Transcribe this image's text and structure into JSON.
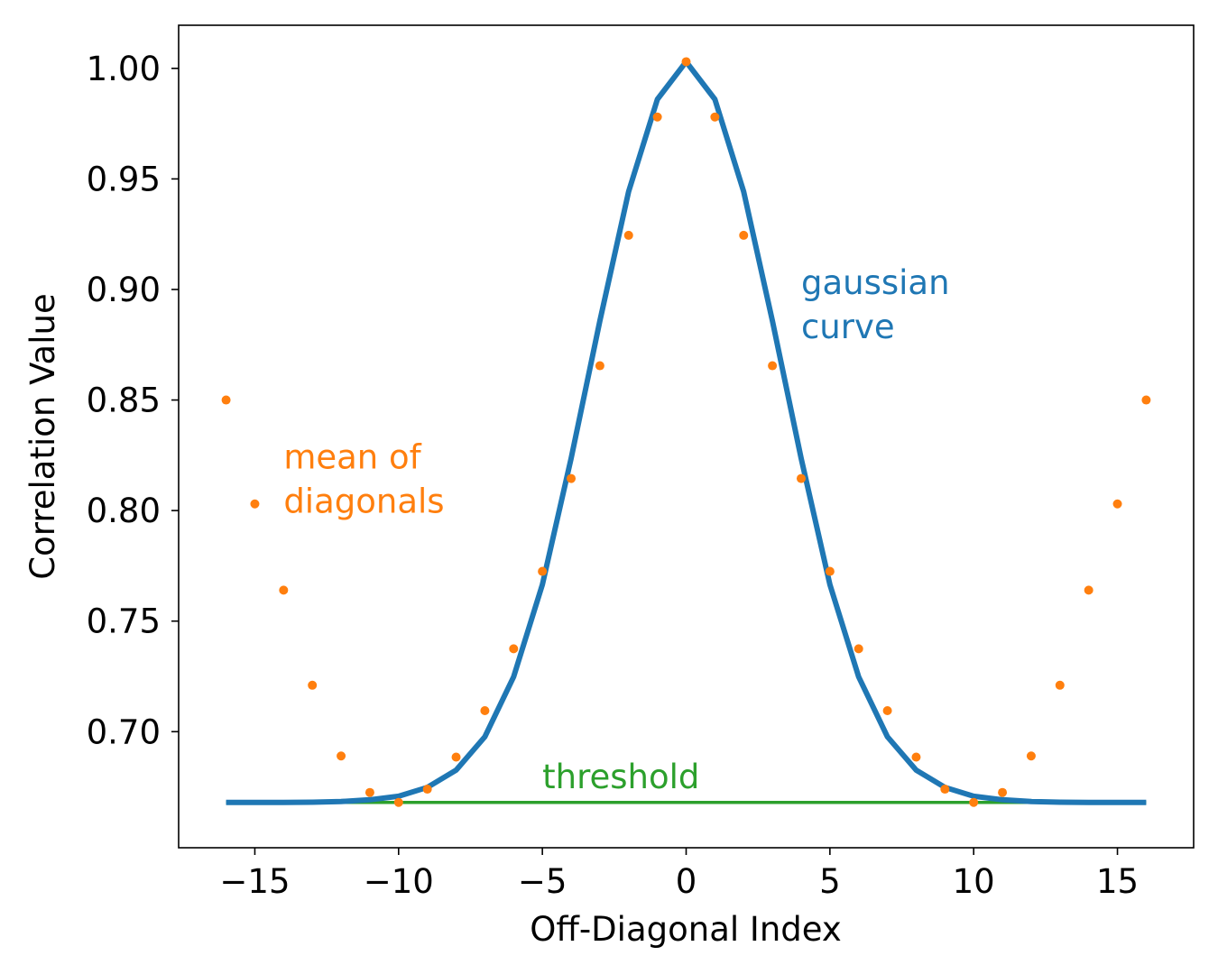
{
  "chart_data": {
    "type": "line",
    "xlabel": "Off-Diagonal Index",
    "ylabel": "Correlation Value",
    "xlim": [
      -17.65,
      17.65
    ],
    "ylim": [
      0.6475,
      1.0195
    ],
    "xticks": [
      -15,
      -10,
      -5,
      0,
      5,
      10,
      15
    ],
    "xtick_labels": [
      "−15",
      "−10",
      "−5",
      "0",
      "5",
      "10",
      "15"
    ],
    "yticks": [
      0.7,
      0.75,
      0.8,
      0.85,
      0.9,
      0.95,
      1.0
    ],
    "ytick_labels": [
      "0.70",
      "0.75",
      "0.80",
      "0.85",
      "0.90",
      "0.95",
      "1.00"
    ],
    "grid": false,
    "legend": "none",
    "x": [
      -16,
      -15,
      -14,
      -13,
      -12,
      -11,
      -10,
      -9,
      -8,
      -7,
      -6,
      -5,
      -4,
      -3,
      -2,
      -1,
      0,
      1,
      2,
      3,
      4,
      5,
      6,
      7,
      8,
      9,
      10,
      11,
      12,
      13,
      14,
      15,
      16
    ],
    "series": [
      {
        "key": "gaussian",
        "kind": "line",
        "color": "#1f77b4",
        "values": [
          0.668,
          0.668,
          0.668,
          0.6681,
          0.6684,
          0.6692,
          0.6708,
          0.6748,
          0.6826,
          0.6977,
          0.7248,
          0.7665,
          0.8236,
          0.8858,
          0.9443,
          0.986,
          1.003,
          0.986,
          0.9443,
          0.8858,
          0.8236,
          0.7665,
          0.7248,
          0.6977,
          0.6826,
          0.6748,
          0.6708,
          0.6692,
          0.6684,
          0.6681,
          0.668,
          0.668,
          0.668
        ]
      },
      {
        "key": "mean_of_diagonals",
        "kind": "scatter",
        "color": "#ff7f0e",
        "values": [
          0.85,
          0.803,
          0.764,
          0.721,
          0.689,
          0.6725,
          0.668,
          0.674,
          0.6885,
          0.7095,
          0.7375,
          0.7725,
          0.8145,
          0.8655,
          0.9245,
          0.978,
          1.003,
          0.978,
          0.9245,
          0.8655,
          0.8145,
          0.7725,
          0.7375,
          0.7095,
          0.6885,
          0.674,
          0.668,
          0.6725,
          0.689,
          0.721,
          0.764,
          0.803,
          0.85
        ]
      },
      {
        "key": "threshold",
        "kind": "hline",
        "color": "#2ca02c",
        "value": 0.668
      }
    ],
    "annotations": [
      {
        "key": "gaussian",
        "lines": [
          "gaussian",
          "curve"
        ],
        "color": "#1f77b4",
        "x": 4.0,
        "y": 0.898
      },
      {
        "key": "mean_of_diagonals",
        "lines": [
          "mean of",
          "diagonals"
        ],
        "color": "#ff7f0e",
        "x": -14.0,
        "y": 0.819
      },
      {
        "key": "threshold",
        "lines": [
          "threshold"
        ],
        "color": "#2ca02c",
        "x": -5.0,
        "y": 0.6745
      }
    ]
  }
}
